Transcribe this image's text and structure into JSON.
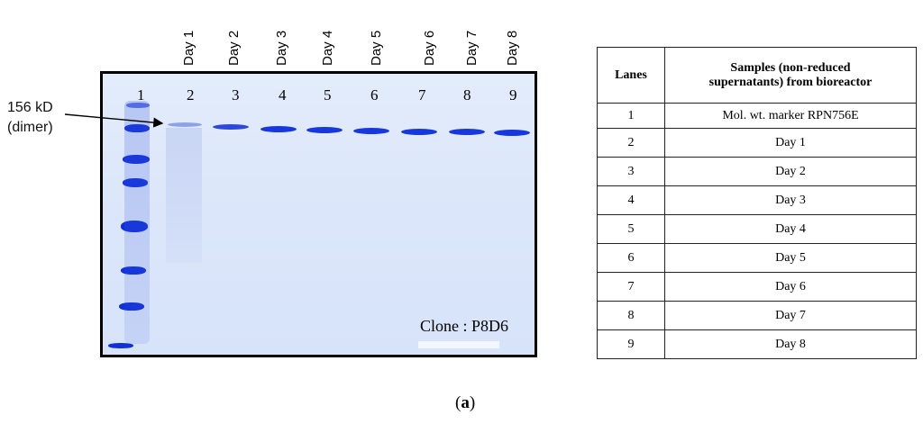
{
  "figure": {
    "day_headers": [
      "Day 1",
      "Day 2",
      "Day 3",
      "Day 4",
      "Day 5",
      "Day 6",
      "Day 7",
      "Day 8"
    ],
    "lane_numbers": [
      "1",
      "2",
      "3",
      "4",
      "5",
      "6",
      "7",
      "8",
      "9"
    ],
    "mw_label_line1": "156 kD",
    "mw_label_line2": "(dimer)",
    "clone_label": "Clone : P8D6",
    "caption_open": "(",
    "caption_letter": "a",
    "caption_close": ")"
  },
  "table": {
    "header_lanes": "Lanes",
    "header_samples_line1": "Samples (non-reduced",
    "header_samples_line2": "supernatants) from bioreactor",
    "rows": [
      {
        "lane": "1",
        "sample": "Mol. wt. marker RPN756E"
      },
      {
        "lane": "2",
        "sample": "Day 1"
      },
      {
        "lane": "3",
        "sample": "Day 2"
      },
      {
        "lane": "4",
        "sample": "Day 3"
      },
      {
        "lane": "5",
        "sample": "Day 4"
      },
      {
        "lane": "6",
        "sample": "Day 5"
      },
      {
        "lane": "7",
        "sample": "Day 6"
      },
      {
        "lane": "8",
        "sample": "Day 7"
      },
      {
        "lane": "9",
        "sample": "Day 8"
      }
    ]
  },
  "colors": {
    "gel_background": "#dce7fa",
    "band_dark": "#1030d8",
    "band_faint": "#7e95e8"
  }
}
